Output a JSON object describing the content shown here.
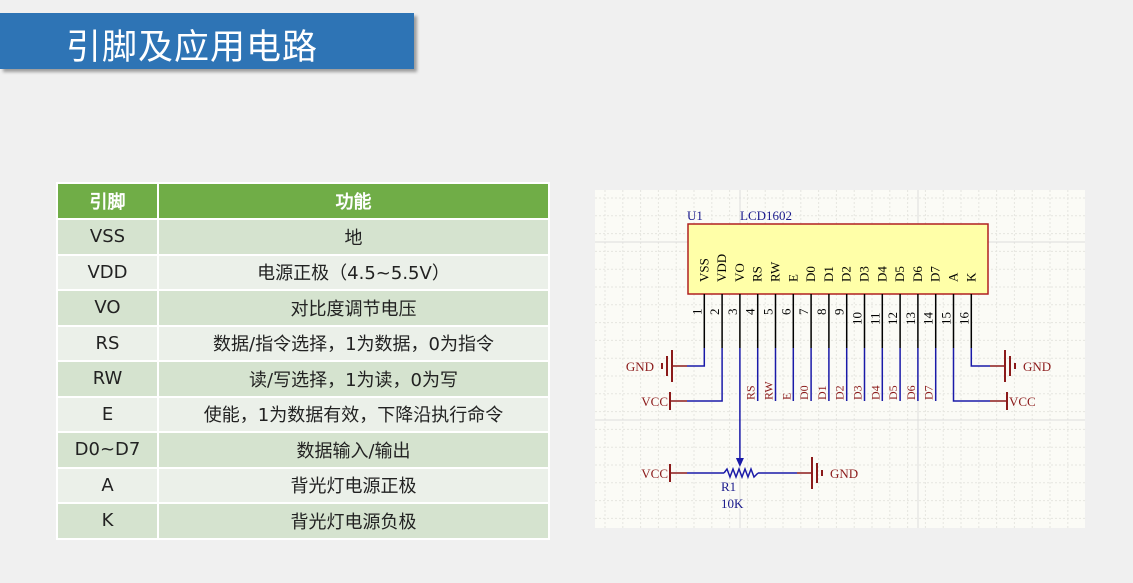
{
  "title": "引脚及应用电路",
  "table": {
    "headers": [
      "引脚",
      "功能"
    ],
    "rows": [
      [
        "VSS",
        "地"
      ],
      [
        "VDD",
        "电源正极（4.5~5.5V）"
      ],
      [
        "VO",
        "对比度调节电压"
      ],
      [
        "RS",
        "数据/指令选择，1为数据，0为指令"
      ],
      [
        "RW",
        "读/写选择，1为读，0为写"
      ],
      [
        "E",
        "使能，1为数据有效，下降沿执行命令"
      ],
      [
        "D0~D7",
        "数据输入/输出"
      ],
      [
        "A",
        "背光灯电源正极"
      ],
      [
        "K",
        "背光灯电源负极"
      ]
    ]
  },
  "schematic": {
    "designator": "U1",
    "part": "LCD1602",
    "pins": [
      "VSS",
      "VDD",
      "VO",
      "RS",
      "RW",
      "E",
      "D0",
      "D1",
      "D2",
      "D3",
      "D4",
      "D5",
      "D6",
      "D7",
      "A",
      "K"
    ],
    "pin_numbers": [
      "1",
      "2",
      "3",
      "4",
      "5",
      "6",
      "7",
      "8",
      "9",
      "10",
      "11",
      "12",
      "13",
      "14",
      "15",
      "16"
    ],
    "net_labels": [
      "RS",
      "RW",
      "E",
      "D0",
      "D1",
      "D2",
      "D3",
      "D4",
      "D5",
      "D6",
      "D7"
    ],
    "power_gnd": "GND",
    "power_vcc": "VCC",
    "resistor_designator": "R1",
    "resistor_value": "10K",
    "colors": {
      "wire": "#1a1aa8",
      "power": "#8b1a1a",
      "body_fill": "#ffffa8",
      "body_stroke": "#b02020",
      "text": "#1a1a8c"
    }
  }
}
